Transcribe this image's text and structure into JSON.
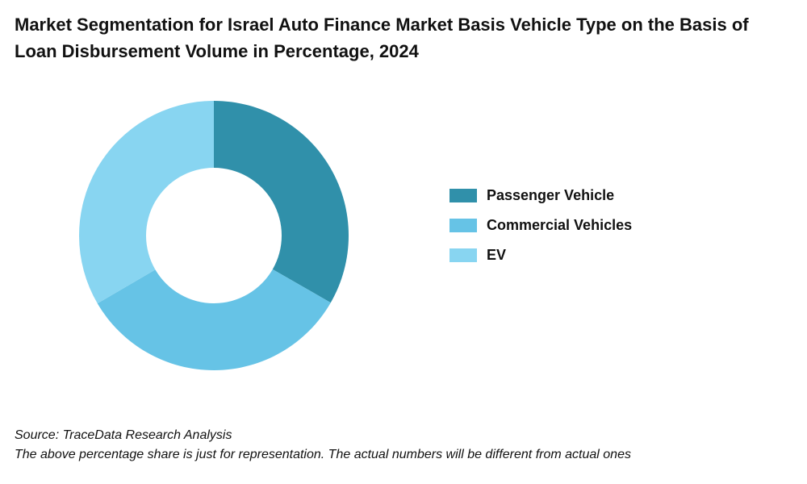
{
  "chart_data": {
    "type": "pie",
    "donut": true,
    "title": "Market Segmentation for Israel Auto Finance Market Basis Vehicle Type on the Basis of Loan Disbursement Volume in Percentage, 2024",
    "categories": [
      "Passenger Vehicle",
      "Commercial Vehicles",
      "EV"
    ],
    "values": [
      33.3,
      33.3,
      33.4
    ],
    "colors": [
      "#3090aa",
      "#66c3e6",
      "#88d5f1"
    ],
    "legend_position": "right"
  },
  "footer": {
    "source": "Source: TraceData Research Analysis",
    "note": "The above percentage share is just for representation. The actual numbers will be different from actual ones"
  }
}
